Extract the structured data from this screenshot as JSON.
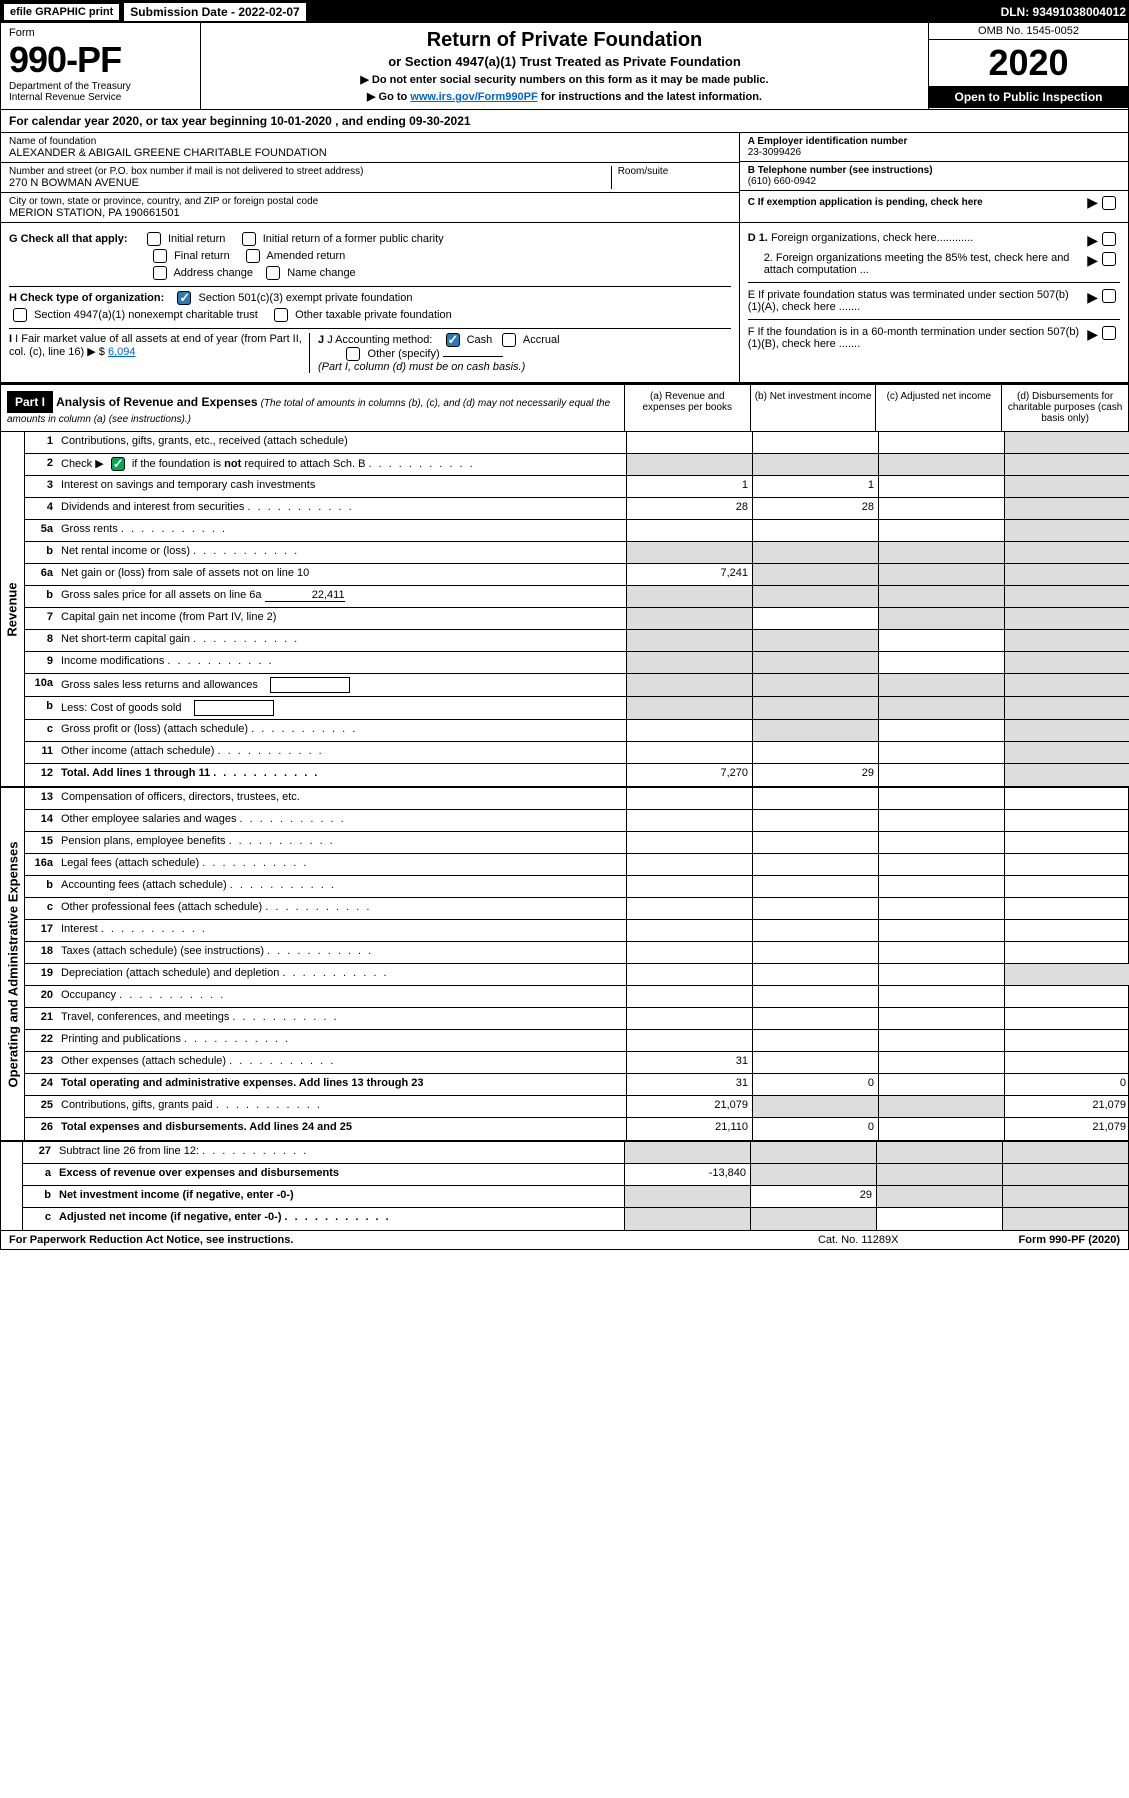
{
  "top_bar": {
    "efile": "efile GRAPHIC print",
    "sub_label": "Submission Date - 2022-02-07",
    "dln": "DLN: 93491038004012"
  },
  "header": {
    "form_word": "Form",
    "form_num": "990-PF",
    "dept1": "Department of the Treasury",
    "dept2": "Internal Revenue Service",
    "title": "Return of Private Foundation",
    "subtitle": "or Section 4947(a)(1) Trust Treated as Private Foundation",
    "note1": "▶ Do not enter social security numbers on this form as it may be made public.",
    "note2_pre": "▶ Go to ",
    "note2_link": "www.irs.gov/Form990PF",
    "note2_post": " for instructions and the latest information.",
    "omb": "OMB No. 1545-0052",
    "year": "2020",
    "open": "Open to Public Inspection"
  },
  "calyear": "For calendar year 2020, or tax year beginning 10-01-2020                        , and ending 09-30-2021",
  "info": {
    "name_label": "Name of foundation",
    "name": "ALEXANDER & ABIGAIL GREENE CHARITABLE FOUNDATION",
    "addr_label": "Number and street (or P.O. box number if mail is not delivered to street address)",
    "addr": "270 N BOWMAN AVENUE",
    "room_label": "Room/suite",
    "city_label": "City or town, state or province, country, and ZIP or foreign postal code",
    "city": "MERION STATION, PA  190661501",
    "a_label": "A Employer identification number",
    "a_val": "23-3099426",
    "b_label": "B Telephone number (see instructions)",
    "b_val": "(610) 660-0942",
    "c_label": "C If exemption application is pending, check here",
    "d1_label": "D 1. Foreign organizations, check here............",
    "d2_label": "2. Foreign organizations meeting the 85% test, check here and attach computation ...",
    "e_label": "E  If private foundation status was terminated under section 507(b)(1)(A), check here .......",
    "f_label": "F  If the foundation is in a 60-month termination under section 507(b)(1)(B), check here .......",
    "g_label": "G Check all that apply:",
    "g_opts": [
      "Initial return",
      "Initial return of a former public charity",
      "Final return",
      "Amended return",
      "Address change",
      "Name change"
    ],
    "h_label": "H Check type of organization:",
    "h_opt1": "Section 501(c)(3) exempt private foundation",
    "h_opt2": "Section 4947(a)(1) nonexempt charitable trust",
    "h_opt3": "Other taxable private foundation",
    "i_label": "I Fair market value of all assets at end of year (from Part II, col. (c), line 16)",
    "i_val": "6,094",
    "j_label": "J Accounting method:",
    "j_cash": "Cash",
    "j_accrual": "Accrual",
    "j_other": "Other (specify)",
    "j_note": "(Part I, column (d) must be on cash basis.)"
  },
  "part1": {
    "label": "Part I",
    "title": "Analysis of Revenue and Expenses",
    "title_note": " (The total of amounts in columns (b), (c), and (d) may not necessarily equal the amounts in column (a) (see instructions).)",
    "col_a": "(a) Revenue and expenses per books",
    "col_b": "(b) Net investment income",
    "col_c": "(c) Adjusted net income",
    "col_d": "(d) Disbursements for charitable purposes (cash basis only)"
  },
  "side_labels": {
    "revenue": "Revenue",
    "expenses": "Operating and Administrative Expenses"
  },
  "rows": [
    {
      "n": "1",
      "label": "Contributions, gifts, grants, etc., received (attach schedule)",
      "a": "",
      "b": "",
      "c": "",
      "d": "",
      "grey": [
        "d"
      ]
    },
    {
      "n": "2",
      "label": "Check ▶ [✓] if the foundation is not required to attach Sch. B",
      "a": "",
      "b": "",
      "c": "",
      "d": "",
      "grey": [
        "a",
        "b",
        "c",
        "d"
      ],
      "has_check": true
    },
    {
      "n": "3",
      "label": "Interest on savings and temporary cash investments",
      "a": "1",
      "b": "1",
      "c": "",
      "d": "",
      "grey": [
        "d"
      ]
    },
    {
      "n": "4",
      "label": "Dividends and interest from securities",
      "a": "28",
      "b": "28",
      "c": "",
      "d": "",
      "grey": [
        "d"
      ]
    },
    {
      "n": "5a",
      "label": "Gross rents",
      "a": "",
      "b": "",
      "c": "",
      "d": "",
      "grey": [
        "d"
      ]
    },
    {
      "n": "b",
      "label": "Net rental income or (loss)",
      "a": "",
      "b": "",
      "c": "",
      "d": "",
      "grey": [
        "a",
        "b",
        "c",
        "d"
      ],
      "underline": true
    },
    {
      "n": "6a",
      "label": "Net gain or (loss) from sale of assets not on line 10",
      "a": "7,241",
      "b": "",
      "c": "",
      "d": "",
      "grey": [
        "b",
        "c",
        "d"
      ]
    },
    {
      "n": "b",
      "label": "Gross sales price for all assets on line 6a",
      "a": "",
      "b": "",
      "c": "",
      "d": "",
      "grey": [
        "a",
        "b",
        "c",
        "d"
      ],
      "inline_val": "22,411"
    },
    {
      "n": "7",
      "label": "Capital gain net income (from Part IV, line 2)",
      "a": "",
      "b": "",
      "c": "",
      "d": "",
      "grey": [
        "a",
        "c",
        "d"
      ]
    },
    {
      "n": "8",
      "label": "Net short-term capital gain",
      "a": "",
      "b": "",
      "c": "",
      "d": "",
      "grey": [
        "a",
        "b",
        "d"
      ]
    },
    {
      "n": "9",
      "label": "Income modifications",
      "a": "",
      "b": "",
      "c": "",
      "d": "",
      "grey": [
        "a",
        "b",
        "d"
      ]
    },
    {
      "n": "10a",
      "label": "Gross sales less returns and allowances",
      "a": "",
      "b": "",
      "c": "",
      "d": "",
      "grey": [
        "a",
        "b",
        "c",
        "d"
      ],
      "box": true
    },
    {
      "n": "b",
      "label": "Less: Cost of goods sold",
      "a": "",
      "b": "",
      "c": "",
      "d": "",
      "grey": [
        "a",
        "b",
        "c",
        "d"
      ],
      "box": true
    },
    {
      "n": "c",
      "label": "Gross profit or (loss) (attach schedule)",
      "a": "",
      "b": "",
      "c": "",
      "d": "",
      "grey": [
        "b",
        "d"
      ]
    },
    {
      "n": "11",
      "label": "Other income (attach schedule)",
      "a": "",
      "b": "",
      "c": "",
      "d": "",
      "grey": [
        "d"
      ]
    },
    {
      "n": "12",
      "label": "Total. Add lines 1 through 11",
      "a": "7,270",
      "b": "29",
      "c": "",
      "d": "",
      "grey": [
        "d"
      ],
      "bold": true
    }
  ],
  "exp_rows": [
    {
      "n": "13",
      "label": "Compensation of officers, directors, trustees, etc.",
      "a": "",
      "b": "",
      "c": "",
      "d": ""
    },
    {
      "n": "14",
      "label": "Other employee salaries and wages",
      "a": "",
      "b": "",
      "c": "",
      "d": ""
    },
    {
      "n": "15",
      "label": "Pension plans, employee benefits",
      "a": "",
      "b": "",
      "c": "",
      "d": ""
    },
    {
      "n": "16a",
      "label": "Legal fees (attach schedule)",
      "a": "",
      "b": "",
      "c": "",
      "d": ""
    },
    {
      "n": "b",
      "label": "Accounting fees (attach schedule)",
      "a": "",
      "b": "",
      "c": "",
      "d": ""
    },
    {
      "n": "c",
      "label": "Other professional fees (attach schedule)",
      "a": "",
      "b": "",
      "c": "",
      "d": ""
    },
    {
      "n": "17",
      "label": "Interest",
      "a": "",
      "b": "",
      "c": "",
      "d": ""
    },
    {
      "n": "18",
      "label": "Taxes (attach schedule) (see instructions)",
      "a": "",
      "b": "",
      "c": "",
      "d": ""
    },
    {
      "n": "19",
      "label": "Depreciation (attach schedule) and depletion",
      "a": "",
      "b": "",
      "c": "",
      "d": "",
      "grey": [
        "d"
      ]
    },
    {
      "n": "20",
      "label": "Occupancy",
      "a": "",
      "b": "",
      "c": "",
      "d": ""
    },
    {
      "n": "21",
      "label": "Travel, conferences, and meetings",
      "a": "",
      "b": "",
      "c": "",
      "d": ""
    },
    {
      "n": "22",
      "label": "Printing and publications",
      "a": "",
      "b": "",
      "c": "",
      "d": ""
    },
    {
      "n": "23",
      "label": "Other expenses (attach schedule)",
      "a": "31",
      "b": "",
      "c": "",
      "d": ""
    },
    {
      "n": "24",
      "label": "Total operating and administrative expenses. Add lines 13 through 23",
      "a": "31",
      "b": "0",
      "c": "",
      "d": "0",
      "bold": true
    },
    {
      "n": "25",
      "label": "Contributions, gifts, grants paid",
      "a": "21,079",
      "b": "",
      "c": "",
      "d": "21,079",
      "grey": [
        "b",
        "c"
      ]
    },
    {
      "n": "26",
      "label": "Total expenses and disbursements. Add lines 24 and 25",
      "a": "21,110",
      "b": "0",
      "c": "",
      "d": "21,079",
      "bold": true
    }
  ],
  "final_rows": [
    {
      "n": "27",
      "label": "Subtract line 26 from line 12:",
      "a": "",
      "b": "",
      "c": "",
      "d": "",
      "grey": [
        "a",
        "b",
        "c",
        "d"
      ]
    },
    {
      "n": "a",
      "label": "Excess of revenue over expenses and disbursements",
      "a": "-13,840",
      "b": "",
      "c": "",
      "d": "",
      "grey": [
        "b",
        "c",
        "d"
      ],
      "bold": true
    },
    {
      "n": "b",
      "label": "Net investment income (if negative, enter -0-)",
      "a": "",
      "b": "29",
      "c": "",
      "d": "",
      "grey": [
        "a",
        "c",
        "d"
      ],
      "bold": true
    },
    {
      "n": "c",
      "label": "Adjusted net income (if negative, enter -0-)",
      "a": "",
      "b": "",
      "c": "",
      "d": "",
      "grey": [
        "a",
        "b",
        "d"
      ],
      "bold": true
    }
  ],
  "footer": {
    "left": "For Paperwork Reduction Act Notice, see instructions.",
    "mid": "Cat. No. 11289X",
    "right": "Form 990-PF (2020)"
  }
}
